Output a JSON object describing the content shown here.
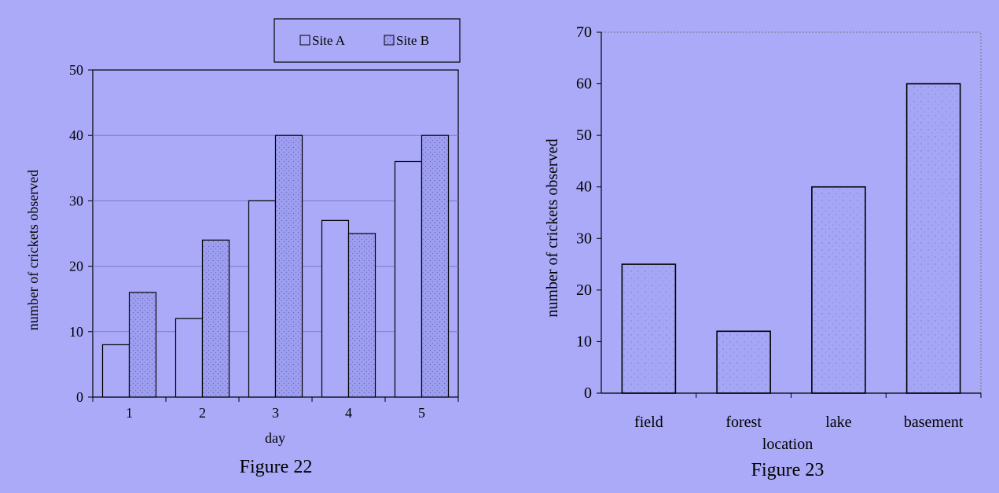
{
  "chart_data": [
    {
      "type": "bar",
      "caption": "Figure 22",
      "xlabel": "day",
      "ylabel": "number of crickets observed",
      "categories": [
        "1",
        "2",
        "3",
        "4",
        "5"
      ],
      "series": [
        {
          "name": "Site A",
          "values": [
            8,
            12,
            30,
            27,
            36
          ]
        },
        {
          "name": "Site B",
          "values": [
            16,
            24,
            40,
            25,
            40
          ]
        }
      ],
      "ylim": [
        0,
        50
      ],
      "yticks": [
        0,
        10,
        20,
        30,
        40,
        50
      ],
      "grid": true,
      "legend": "top-right"
    },
    {
      "type": "bar",
      "caption": "Figure 23",
      "xlabel": "location",
      "ylabel": "number of crickets observed",
      "categories": [
        "field",
        "forest",
        "lake",
        "basement"
      ],
      "values": [
        25,
        12,
        40,
        60
      ],
      "ylim": [
        0,
        70
      ],
      "yticks": [
        0,
        10,
        20,
        30,
        40,
        50,
        60,
        70
      ],
      "grid": false
    }
  ],
  "colors": {
    "background": "#aaaaf8",
    "plot_area": "#aaaaf8",
    "bar_fill": "#aaaaf8",
    "hatched_fill": "#9c9cee",
    "stroke": "#000000",
    "grid": "#7a7ad0"
  }
}
